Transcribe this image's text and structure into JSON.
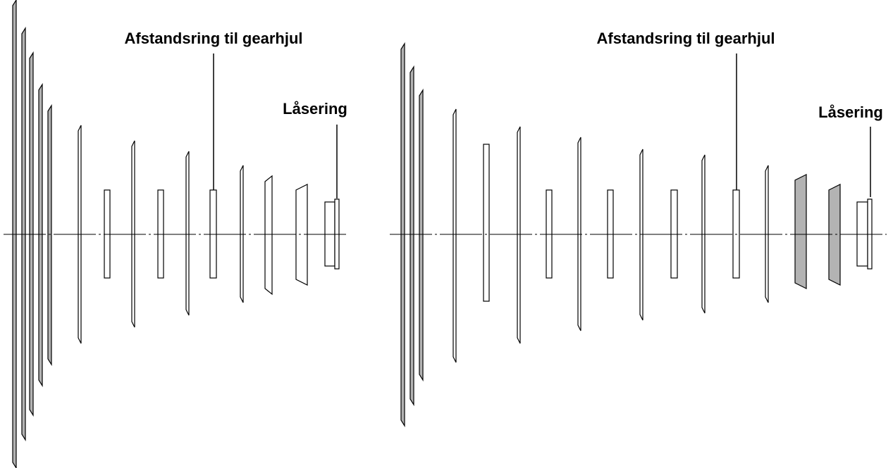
{
  "diagrams": [
    {
      "spacer_label": "Afstandsring til gearhjul",
      "lockring_label": "Låsering"
    },
    {
      "spacer_label": "Afstandsring til gearhjul",
      "lockring_label": "Låsering"
    }
  ]
}
